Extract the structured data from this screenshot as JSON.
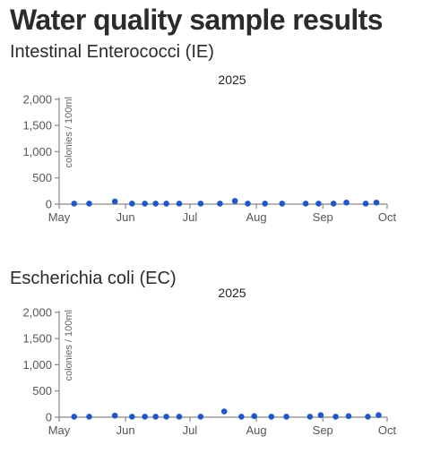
{
  "title": "Water quality sample results",
  "chart_data": [
    {
      "type": "scatter",
      "title": "Intestinal Enterococci (IE)",
      "year": "2025",
      "ylabel": "colonies / 100ml",
      "xlabel": "",
      "yticks": [
        0,
        500,
        1000,
        1500,
        2000
      ],
      "ytick_labels": [
        "0",
        "500",
        "1,000",
        "1,500",
        "2,000"
      ],
      "ylim": [
        0,
        2100
      ],
      "xticks": [
        "May",
        "Jun",
        "Jul",
        "Aug",
        "Sep",
        "Oct"
      ],
      "xlim": [
        "2025-05-01",
        "2025-10-01"
      ],
      "grid": false,
      "color": "#1f56c9",
      "points": [
        {
          "x": "2025-05-08",
          "y": 10
        },
        {
          "x": "2025-05-15",
          "y": 10
        },
        {
          "x": "2025-05-27",
          "y": 50
        },
        {
          "x": "2025-06-04",
          "y": 10
        },
        {
          "x": "2025-06-10",
          "y": 10
        },
        {
          "x": "2025-06-15",
          "y": 10
        },
        {
          "x": "2025-06-20",
          "y": 10
        },
        {
          "x": "2025-06-26",
          "y": 10
        },
        {
          "x": "2025-07-06",
          "y": 10
        },
        {
          "x": "2025-07-15",
          "y": 10
        },
        {
          "x": "2025-07-22",
          "y": 60
        },
        {
          "x": "2025-07-28",
          "y": 10
        },
        {
          "x": "2025-08-05",
          "y": 10
        },
        {
          "x": "2025-08-13",
          "y": 10
        },
        {
          "x": "2025-08-24",
          "y": 10
        },
        {
          "x": "2025-08-30",
          "y": 10
        },
        {
          "x": "2025-09-06",
          "y": 10
        },
        {
          "x": "2025-09-12",
          "y": 30
        },
        {
          "x": "2025-09-21",
          "y": 10
        },
        {
          "x": "2025-09-26",
          "y": 30
        }
      ]
    },
    {
      "type": "scatter",
      "title": "Escherichia coli (EC)",
      "year": "2025",
      "ylabel": "colonies / 100ml",
      "xlabel": "",
      "yticks": [
        0,
        500,
        1000,
        1500,
        2000
      ],
      "ytick_labels": [
        "0",
        "500",
        "1,000",
        "1,500",
        "2,000"
      ],
      "ylim": [
        0,
        2100
      ],
      "xticks": [
        "May",
        "Jun",
        "Jul",
        "Aug",
        "Sep",
        "Oct"
      ],
      "xlim": [
        "2025-05-01",
        "2025-10-01"
      ],
      "grid": false,
      "color": "#1f56c9",
      "points": [
        {
          "x": "2025-05-08",
          "y": 10
        },
        {
          "x": "2025-05-15",
          "y": 10
        },
        {
          "x": "2025-05-27",
          "y": 30
        },
        {
          "x": "2025-06-04",
          "y": 10
        },
        {
          "x": "2025-06-10",
          "y": 10
        },
        {
          "x": "2025-06-15",
          "y": 10
        },
        {
          "x": "2025-06-20",
          "y": 10
        },
        {
          "x": "2025-06-26",
          "y": 10
        },
        {
          "x": "2025-07-06",
          "y": 10
        },
        {
          "x": "2025-07-17",
          "y": 110
        },
        {
          "x": "2025-07-25",
          "y": 10
        },
        {
          "x": "2025-07-31",
          "y": 20
        },
        {
          "x": "2025-08-08",
          "y": 10
        },
        {
          "x": "2025-08-15",
          "y": 10
        },
        {
          "x": "2025-08-26",
          "y": 10
        },
        {
          "x": "2025-08-31",
          "y": 40
        },
        {
          "x": "2025-09-07",
          "y": 10
        },
        {
          "x": "2025-09-13",
          "y": 20
        },
        {
          "x": "2025-09-22",
          "y": 10
        },
        {
          "x": "2025-09-27",
          "y": 40
        }
      ]
    }
  ]
}
